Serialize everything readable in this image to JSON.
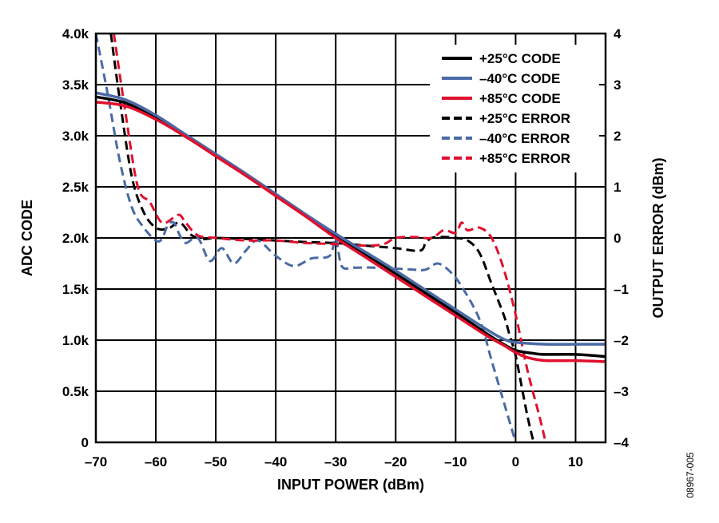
{
  "figure_id": "08967-005",
  "chart_data": {
    "type": "line",
    "xlabel": "INPUT POWER (dBm)",
    "ylabel": "ADC CODE",
    "y2label": "OUTPUT ERROR (dBm)",
    "xlim": [
      -70,
      15
    ],
    "ylim": [
      0,
      4000
    ],
    "y2lim": [
      -4,
      4
    ],
    "grid": true,
    "legend_position": "top-right",
    "x_ticks": [
      "-70",
      "-60",
      "-50",
      "-40",
      "-30",
      "-20",
      "-10",
      "0",
      "10"
    ],
    "y_ticks": [
      "0",
      "0.5k",
      "1.0k",
      "1.5k",
      "2.0k",
      "2.5k",
      "3.0k",
      "3.5k",
      "4.0k"
    ],
    "y2_ticks": [
      "-4",
      "-3",
      "-2",
      "-1",
      "0",
      "1",
      "2",
      "3",
      "4"
    ],
    "x_tick_labels": [
      "–70",
      "–60",
      "–50",
      "–40",
      "–30",
      "–20",
      "–10",
      "0",
      "10"
    ],
    "y2_tick_labels": [
      "–4",
      "–3",
      "–2",
      "–1",
      "0",
      "1",
      "2",
      "3",
      "4"
    ],
    "colors": {
      "black": "#000000",
      "blue": "#4a6aa5",
      "red": "#e0102e"
    },
    "series": [
      {
        "name": "+25°C CODE",
        "color": "#000000",
        "dash": false,
        "axis": "left",
        "x": [
          -70,
          -65,
          -60,
          -55,
          -50,
          -45,
          -40,
          -35,
          -30,
          -25,
          -20,
          -15,
          -10,
          -5,
          -2,
          0,
          3,
          5,
          10,
          15
        ],
        "y": [
          3380,
          3320,
          3170,
          2990,
          2810,
          2620,
          2420,
          2220,
          2010,
          1830,
          1650,
          1460,
          1270,
          1070,
          960,
          900,
          870,
          860,
          860,
          840
        ]
      },
      {
        "name": "–40°C CODE",
        "color": "#4a6aa5",
        "dash": false,
        "axis": "left",
        "x": [
          -70,
          -65,
          -60,
          -55,
          -50,
          -45,
          -40,
          -35,
          -30,
          -25,
          -20,
          -15,
          -10,
          -5,
          -2,
          0,
          5,
          10,
          15
        ],
        "y": [
          3420,
          3350,
          3200,
          3010,
          2820,
          2630,
          2430,
          2230,
          2040,
          1860,
          1680,
          1490,
          1300,
          1110,
          1010,
          980,
          960,
          960,
          960
        ]
      },
      {
        "name": "+85°C CODE",
        "color": "#e0102e",
        "dash": false,
        "axis": "left",
        "x": [
          -70,
          -65,
          -60,
          -55,
          -50,
          -45,
          -40,
          -35,
          -30,
          -25,
          -20,
          -15,
          -10,
          -5,
          -2,
          0,
          2,
          5,
          10,
          15
        ],
        "y": [
          3330,
          3290,
          3160,
          2990,
          2800,
          2610,
          2410,
          2210,
          2000,
          1810,
          1620,
          1430,
          1240,
          1050,
          950,
          880,
          830,
          800,
          800,
          790
        ]
      },
      {
        "name": "+25°C ERROR",
        "color": "#000000",
        "dash": true,
        "axis": "right",
        "x": [
          -67.5,
          -66,
          -64,
          -62,
          -60,
          -58,
          -56,
          -54,
          -52,
          -50,
          -45,
          -40,
          -35,
          -30,
          -25,
          -20,
          -16,
          -15,
          -14,
          -12,
          -10,
          -8,
          -6,
          -4,
          -2,
          -1,
          0,
          1,
          2,
          3
        ],
        "y": [
          4,
          2.7,
          1.2,
          0.5,
          0.2,
          0.18,
          0.3,
          0.05,
          -0.02,
          0.0,
          -0.02,
          -0.05,
          -0.08,
          -0.1,
          -0.15,
          -0.2,
          -0.25,
          -0.1,
          0.0,
          0.02,
          0.0,
          -0.05,
          -0.3,
          -0.9,
          -1.5,
          -1.9,
          -2.3,
          -2.9,
          -3.5,
          -4
        ]
      },
      {
        "name": "–40°C ERROR",
        "color": "#4a6aa5",
        "dash": true,
        "axis": "right",
        "x": [
          -70,
          -68,
          -66,
          -64,
          -62,
          -60,
          -59,
          -58,
          -57,
          -56,
          -55,
          -53,
          -51,
          -49,
          -47,
          -45,
          -43,
          -40,
          -37,
          -34,
          -31,
          -30,
          -29,
          -27,
          -24,
          -20,
          -17,
          -15,
          -13,
          -11,
          -9,
          -6,
          -4,
          -2,
          -0.5,
          0
        ],
        "y": [
          4,
          2.8,
          1.5,
          0.6,
          0.2,
          -0.05,
          -0.02,
          0.25,
          0.3,
          0.05,
          -0.1,
          0.0,
          -0.45,
          -0.2,
          -0.5,
          -0.25,
          -0.05,
          -0.35,
          -0.55,
          -0.4,
          -0.35,
          0.0,
          -0.55,
          -0.58,
          -0.58,
          -0.6,
          -0.62,
          -0.62,
          -0.5,
          -0.65,
          -0.95,
          -1.6,
          -2.4,
          -3.2,
          -3.8,
          -4
        ]
      },
      {
        "name": "+85°C ERROR",
        "color": "#e0102e",
        "dash": true,
        "axis": "right",
        "x": [
          -67,
          -65,
          -63,
          -61,
          -59,
          -57,
          -56,
          -55,
          -53,
          -50,
          -45,
          -40,
          -35,
          -30,
          -25,
          -22,
          -20,
          -17,
          -14,
          -12,
          -10,
          -9,
          -8,
          -6,
          -4,
          -2,
          0,
          2,
          4,
          5
        ],
        "y": [
          4,
          2.4,
          1.0,
          0.7,
          0.3,
          0.4,
          0.45,
          0.3,
          0.05,
          0.0,
          -0.05,
          -0.05,
          -0.1,
          -0.12,
          -0.15,
          -0.12,
          0.0,
          0.02,
          0.0,
          0.15,
          0.1,
          0.3,
          0.15,
          0.2,
          0.0,
          -0.6,
          -1.5,
          -2.6,
          -3.5,
          -4
        ]
      }
    ]
  }
}
